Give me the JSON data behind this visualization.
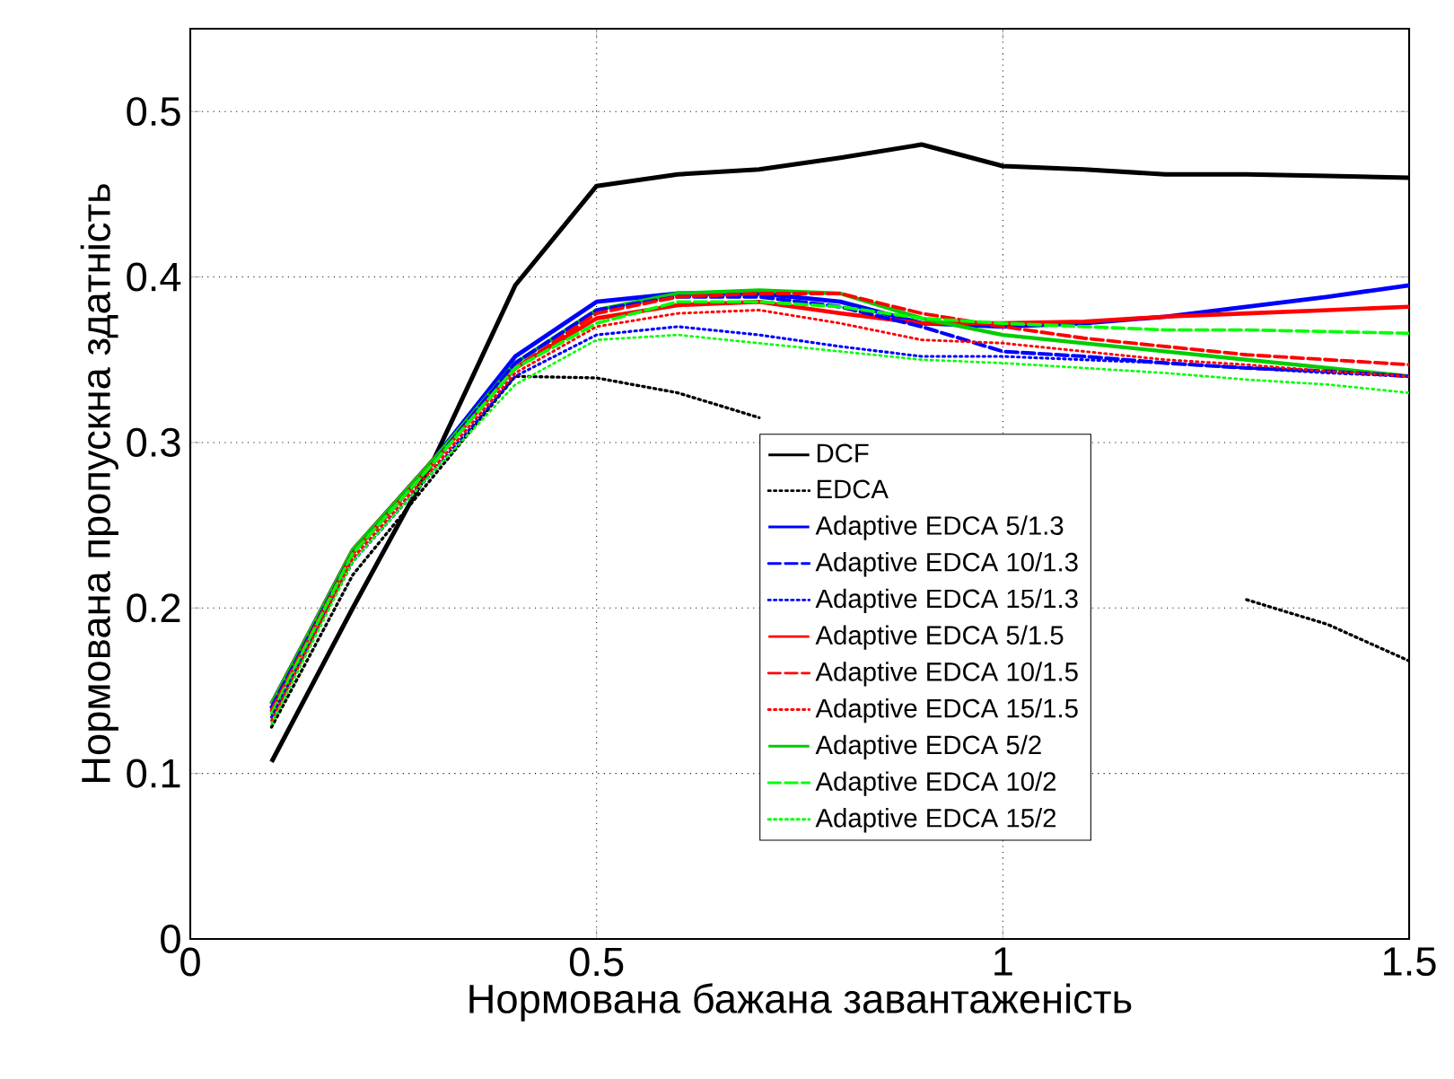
{
  "chart_data": {
    "type": "line",
    "xlabel": "Нормована бажана завантаженість",
    "ylabel": "Нормована пропускна здатність",
    "x": [
      0.1,
      0.2,
      0.3,
      0.4,
      0.5,
      0.6,
      0.7,
      0.8,
      0.9,
      1.0,
      1.1,
      1.2,
      1.3,
      1.4,
      1.5
    ],
    "xlim": [
      0,
      1.5
    ],
    "xticks": [
      0,
      0.5,
      1,
      1.5
    ],
    "ylim": [
      0,
      0.55
    ],
    "yticks": [
      0,
      0.1,
      0.2,
      0.3,
      0.4,
      0.5
    ],
    "grid": true,
    "legend": "bottom right",
    "marker": "none",
    "series": [
      {
        "name": "DCF",
        "color": "#000000",
        "line_style": "solid",
        "values": [
          0.107,
          0.2,
          0.29,
          0.395,
          0.455,
          0.462,
          0.465,
          0.472,
          0.48,
          0.467,
          0.465,
          0.462,
          0.462,
          0.461,
          0.46
        ]
      },
      {
        "name": "EDCA",
        "color": "#000000",
        "line_style": "dotted",
        "values": [
          0.128,
          0.22,
          0.28,
          0.34,
          0.339,
          0.33,
          0.315,
          null,
          null,
          null,
          null,
          null,
          0.205,
          0.19,
          0.168
        ]
      },
      {
        "name": "Adaptive EDCA 5/1.3",
        "color": "#0000ff",
        "line_style": "solid",
        "values": [
          0.142,
          0.235,
          0.29,
          0.352,
          0.385,
          0.39,
          0.39,
          0.385,
          0.372,
          0.37,
          0.372,
          0.376,
          0.382,
          0.388,
          0.395
        ]
      },
      {
        "name": "Adaptive EDCA 10/1.3",
        "color": "#0000ff",
        "line_style": "dashed",
        "values": [
          0.14,
          0.233,
          0.288,
          0.348,
          0.38,
          0.388,
          0.388,
          0.382,
          0.37,
          0.355,
          0.352,
          0.348,
          0.345,
          0.343,
          0.34
        ]
      },
      {
        "name": "Adaptive EDCA 15/1.3",
        "color": "#0000ff",
        "line_style": "dotted",
        "values": [
          0.134,
          0.228,
          0.283,
          0.34,
          0.365,
          0.37,
          0.365,
          0.358,
          0.352,
          0.352,
          0.35,
          0.348,
          0.345,
          0.342,
          0.34
        ]
      },
      {
        "name": "Adaptive EDCA 5/1.5",
        "color": "#ff0000",
        "line_style": "solid",
        "values": [
          0.142,
          0.235,
          0.29,
          0.345,
          0.375,
          0.383,
          0.385,
          0.378,
          0.372,
          0.372,
          0.373,
          0.376,
          0.378,
          0.38,
          0.382
        ]
      },
      {
        "name": "Adaptive EDCA 10/1.5",
        "color": "#ff0000",
        "line_style": "dashed",
        "values": [
          0.138,
          0.233,
          0.288,
          0.345,
          0.378,
          0.388,
          0.39,
          0.39,
          0.378,
          0.37,
          0.363,
          0.358,
          0.353,
          0.35,
          0.347
        ]
      },
      {
        "name": "Adaptive EDCA 15/1.5",
        "color": "#ff0000",
        "line_style": "dotted",
        "values": [
          0.132,
          0.23,
          0.285,
          0.342,
          0.37,
          0.378,
          0.38,
          0.372,
          0.362,
          0.36,
          0.355,
          0.35,
          0.347,
          0.343,
          0.34
        ]
      },
      {
        "name": "Adaptive EDCA 5/2",
        "color": "#00cc00",
        "line_style": "solid",
        "values": [
          0.142,
          0.235,
          0.29,
          0.348,
          0.38,
          0.39,
          0.392,
          0.39,
          0.375,
          0.365,
          0.36,
          0.355,
          0.35,
          0.345,
          0.34
        ]
      },
      {
        "name": "Adaptive EDCA 10/2",
        "color": "#00ff00",
        "line_style": "dashed",
        "values": [
          0.136,
          0.233,
          0.288,
          0.345,
          0.372,
          0.385,
          0.385,
          0.382,
          0.375,
          0.372,
          0.37,
          0.368,
          0.368,
          0.367,
          0.366
        ]
      },
      {
        "name": "Adaptive EDCA 15/2",
        "color": "#00ff00",
        "line_style": "dotted",
        "values": [
          0.13,
          0.228,
          0.283,
          0.335,
          0.362,
          0.365,
          0.36,
          0.355,
          0.35,
          0.348,
          0.345,
          0.342,
          0.338,
          0.335,
          0.33
        ]
      }
    ]
  }
}
